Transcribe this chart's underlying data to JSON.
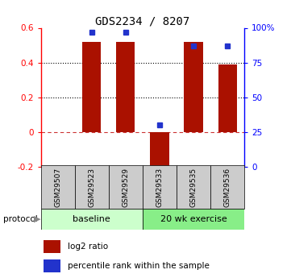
{
  "title": "GDS2234 / 8207",
  "samples": [
    "GSM29507",
    "GSM29523",
    "GSM29529",
    "GSM29533",
    "GSM29535",
    "GSM29536"
  ],
  "log2_ratio": [
    0.0,
    0.52,
    0.52,
    -0.23,
    0.52,
    0.39
  ],
  "percentile_rank": [
    null,
    97,
    97,
    30,
    87,
    87
  ],
  "bar_color": "#aa1100",
  "dot_color": "#2233cc",
  "ylim_left": [
    -0.2,
    0.6
  ],
  "ylim_right": [
    0,
    100
  ],
  "yticks_left": [
    -0.2,
    0.0,
    0.2,
    0.4,
    0.6
  ],
  "ytick_labels_left": [
    "-0.2",
    "0",
    "0.2",
    "0.4",
    "0.6"
  ],
  "yticks_right": [
    0,
    25,
    50,
    75,
    100
  ],
  "ytick_labels_right": [
    "0",
    "25",
    "50",
    "75",
    "100%"
  ],
  "hline_dotted": [
    0.2,
    0.4
  ],
  "hline_dashed": 0.0,
  "baseline_samples": [
    0,
    1,
    2
  ],
  "exercise_samples": [
    3,
    4,
    5
  ],
  "protocol_label_baseline": "baseline",
  "protocol_label_exercise": "20 wk exercise",
  "protocol_text": "protocol",
  "baseline_color": "#ccffcc",
  "exercise_color": "#88ee88",
  "sample_box_color": "#cccccc",
  "legend_log2": "log2 ratio",
  "legend_pct": "percentile rank within the sample",
  "bar_width": 0.55
}
